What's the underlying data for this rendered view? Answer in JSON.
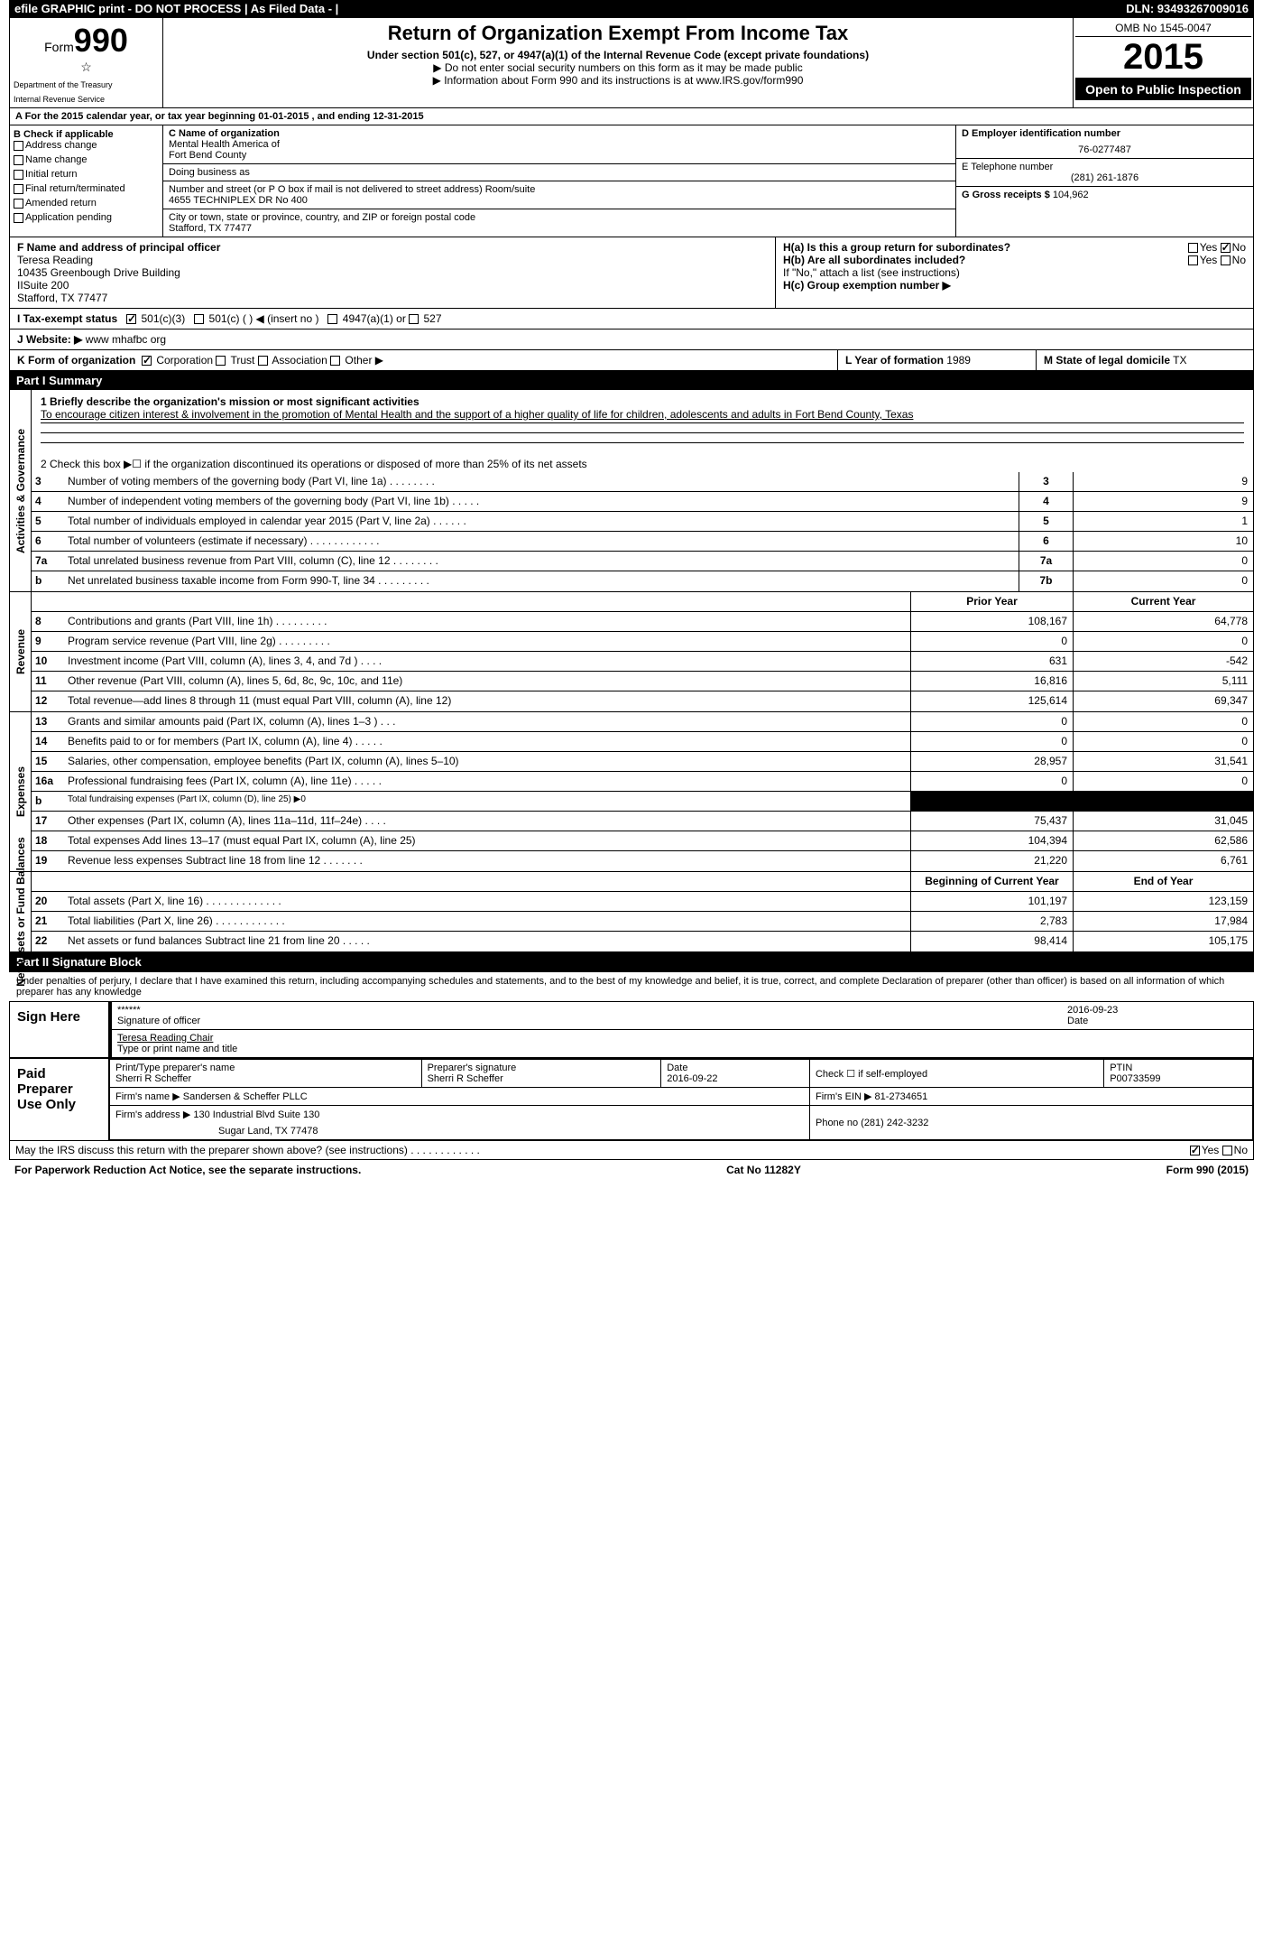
{
  "top_bar": {
    "left": "efile GRAPHIC print - DO NOT PROCESS   | As Filed Data - |",
    "right": "DLN: 93493267009016"
  },
  "header": {
    "form_label": "Form",
    "form_number": "990",
    "dept1": "Department of the Treasury",
    "dept2": "Internal Revenue Service",
    "title": "Return of Organization Exempt From Income Tax",
    "subtitle": "Under section 501(c), 527, or 4947(a)(1) of the Internal Revenue Code (except private foundations)",
    "note1": "▶ Do not enter social security numbers on this form as it may be made public",
    "note2": "▶ Information about Form 990 and its instructions is at www.IRS.gov/form990",
    "omb": "OMB No 1545-0047",
    "year": "2015",
    "open": "Open to Public Inspection"
  },
  "section_a": "A  For the 2015 calendar year, or tax year beginning 01-01-2015    , and ending 12-31-2015",
  "b": {
    "title": "B  Check if applicable",
    "items": [
      "Address change",
      "Name change",
      "Initial return",
      "Final return/terminated",
      "Amended return",
      "Application pending"
    ]
  },
  "c": {
    "name_label": "C Name of organization",
    "name1": "Mental Health America of",
    "name2": "Fort Bend County",
    "dba_label": "Doing business as",
    "street_label": "Number and street (or P O  box if mail is not delivered to street address)  Room/suite",
    "street": "4655 TECHNIPLEX DR No 400",
    "city_label": "City or town, state or province, country, and ZIP or foreign postal code",
    "city": "Stafford, TX  77477"
  },
  "d": {
    "label": "D Employer identification number",
    "value": "76-0277487"
  },
  "e": {
    "label": "E Telephone number",
    "value": "(281) 261-1876"
  },
  "g": {
    "label": "G Gross receipts $",
    "value": "104,962"
  },
  "f": {
    "label": "F    Name and address of principal officer",
    "name": "Teresa Reading",
    "addr1": "10435 Greenbough Drive Building",
    "addr2": "IISuite 200",
    "addr3": "Stafford, TX  77477"
  },
  "h": {
    "a": "H(a)  Is this a group return for subordinates?",
    "b": "H(b)  Are all subordinates included?",
    "note": "If \"No,\" attach a list  (see instructions)",
    "c": "H(c)   Group exemption number ▶"
  },
  "i": "I   Tax-exempt status",
  "j_label": "J  Website: ▶",
  "j_value": "www mhafbc org",
  "k": "K Form of organization",
  "l_label": "L Year of formation",
  "l_value": "1989",
  "m_label": "M State of legal domicile",
  "m_value": "TX",
  "part1": {
    "title": "Part I      Summary",
    "line1_label": "1 Briefly describe the organization's mission or most significant activities",
    "line1_text": "To encourage citizen interest & involvement in the promotion of Mental Health and the support of a higher quality of life for children, adolescents and adults in Fort Bend County, Texas",
    "line2": "2  Check this box ▶☐ if the organization discontinued its operations or disposed of more than 25% of its net assets",
    "gov_lines": [
      {
        "num": "3",
        "desc": "Number of voting members of the governing body (Part VI, line 1a)  .   .   .   .   .   .   .   .",
        "box": "3",
        "val": "9"
      },
      {
        "num": "4",
        "desc": "Number of independent voting members of the governing body (Part VI, line 1b)  .   .   .   .   .",
        "box": "4",
        "val": "9"
      },
      {
        "num": "5",
        "desc": "Total number of individuals employed in calendar year 2015 (Part V, line 2a)  .   .   .   .   .   .",
        "box": "5",
        "val": "1"
      },
      {
        "num": "6",
        "desc": "Total number of volunteers (estimate if necessary)  .   .   .   .   .   .   .   .   .   .   .   .",
        "box": "6",
        "val": "10"
      },
      {
        "num": "7a",
        "desc": "Total unrelated business revenue from Part VIII, column (C), line 12  .   .   .   .   .   .   .   .",
        "box": "7a",
        "val": "0"
      },
      {
        "num": "b",
        "desc": "Net unrelated business taxable income from Form 990-T, line 34  .   .   .   .   .   .   .   .   .",
        "box": "7b",
        "val": "0"
      }
    ],
    "prior_label": "Prior Year",
    "current_label": "Current Year",
    "revenue_lines": [
      {
        "num": "8",
        "desc": "Contributions and grants (Part VIII, line 1h)  .   .   .   .   .   .   .   .   .",
        "prior": "108,167",
        "current": "64,778"
      },
      {
        "num": "9",
        "desc": "Program service revenue (Part VIII, line 2g)  .   .   .   .   .   .   .   .   .",
        "prior": "0",
        "current": "0"
      },
      {
        "num": "10",
        "desc": "Investment income (Part VIII, column (A), lines 3, 4, and 7d )   .   .   .   .",
        "prior": "631",
        "current": "-542"
      },
      {
        "num": "11",
        "desc": "Other revenue (Part VIII, column (A), lines 5, 6d, 8c, 9c, 10c, and 11e)",
        "prior": "16,816",
        "current": "5,111"
      },
      {
        "num": "12",
        "desc": "Total revenue—add lines 8 through 11 (must equal Part VIII, column (A), line 12)",
        "prior": "125,614",
        "current": "69,347"
      }
    ],
    "expense_lines": [
      {
        "num": "13",
        "desc": "Grants and similar amounts paid (Part IX, column (A), lines 1–3 )  .   .   .",
        "prior": "0",
        "current": "0"
      },
      {
        "num": "14",
        "desc": "Benefits paid to or for members (Part IX, column (A), line 4)  .   .   .   .   .",
        "prior": "0",
        "current": "0"
      },
      {
        "num": "15",
        "desc": "Salaries, other compensation, employee benefits (Part IX, column (A), lines 5–10)",
        "prior": "28,957",
        "current": "31,541"
      },
      {
        "num": "16a",
        "desc": "Professional fundraising fees (Part IX, column (A), line 11e)  .   .   .   .   .",
        "prior": "0",
        "current": "0"
      },
      {
        "num": "b",
        "desc": "Total fundraising expenses (Part IX, column (D), line 25) ▶0",
        "prior": "",
        "current": "",
        "blackout": true
      },
      {
        "num": "17",
        "desc": "Other expenses (Part IX, column (A), lines 11a–11d, 11f–24e)  .   .   .   .",
        "prior": "75,437",
        "current": "31,045"
      },
      {
        "num": "18",
        "desc": "Total expenses  Add lines 13–17 (must equal Part IX, column (A), line 25)",
        "prior": "104,394",
        "current": "62,586"
      },
      {
        "num": "19",
        "desc": "Revenue less expenses  Subtract line 18 from line 12  .   .   .   .   .   .   .",
        "prior": "21,220",
        "current": "6,761"
      }
    ],
    "begin_label": "Beginning of Current Year",
    "end_label": "End of Year",
    "net_lines": [
      {
        "num": "20",
        "desc": "Total assets (Part X, line 16)  .   .   .   .   .   .   .   .   .   .   .   .   .",
        "prior": "101,197",
        "current": "123,159"
      },
      {
        "num": "21",
        "desc": "Total liabilities (Part X, line 26)  .   .   .   .   .   .   .   .   .   .   .   .",
        "prior": "2,783",
        "current": "17,984"
      },
      {
        "num": "22",
        "desc": "Net assets or fund balances  Subtract line 21 from line 20  .   .   .   .   .",
        "prior": "98,414",
        "current": "105,175"
      }
    ]
  },
  "part2": {
    "title": "Part II      Signature Block",
    "declaration": "Under penalties of perjury, I declare that I have examined this return, including accompanying schedules and statements, and to the best of my knowledge and belief, it is true, correct, and complete  Declaration of preparer (other than officer) is based on all information of which preparer has any knowledge",
    "sign_here": "Sign Here",
    "sig_stars": "******",
    "sig_date": "2016-09-23",
    "sig_of_officer": "Signature of officer",
    "date_label": "Date",
    "officer_name": "Teresa Reading Chair",
    "type_name": "Type or print name and title",
    "paid_preparer": "Paid Preparer Use Only",
    "prep_name_label": "Print/Type preparer's name",
    "prep_name": "Sherri R Scheffer",
    "prep_sig_label": "Preparer's signature",
    "prep_sig": "Sherri R Scheffer",
    "prep_date_label": "Date",
    "prep_date": "2016-09-22",
    "self_emp": "Check ☐ if self-employed",
    "ptin_label": "PTIN",
    "ptin": "P00733599",
    "firm_name_label": "Firm's name      ▶",
    "firm_name": "Sandersen & Scheffer PLLC",
    "firm_ein_label": "Firm's EIN ▶",
    "firm_ein": "81-2734651",
    "firm_addr_label": "Firm's address ▶",
    "firm_addr1": "130 Industrial Blvd Suite 130",
    "firm_addr2": "Sugar Land, TX  77478",
    "phone_label": "Phone no",
    "phone": "(281) 242-3232"
  },
  "discuss": "May the IRS discuss this return with the preparer shown above? (see instructions)   .   .   .   .   .   .   .   .   .   .   .   .",
  "footer": {
    "left": "For Paperwork Reduction Act Notice, see the separate instructions.",
    "mid": "Cat No  11282Y",
    "right": "Form 990 (2015)"
  },
  "colors": {
    "background": "#ffffff",
    "text": "#000000",
    "header_bg": "#000000",
    "header_fg": "#ffffff"
  }
}
